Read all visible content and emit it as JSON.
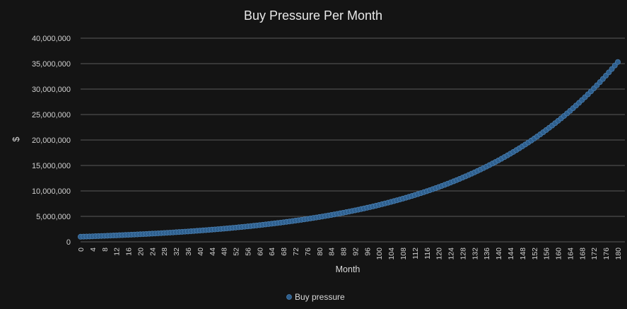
{
  "colors": {
    "background": "#141414",
    "gridline": "#5a5a5a",
    "series": "#2e5f8e",
    "series_stroke": "#4a7fb0"
  },
  "chart_data": {
    "type": "scatter",
    "title": "Buy Pressure Per Month",
    "xlabel": "Month",
    "ylabel": "$",
    "xlim": [
      0,
      180
    ],
    "ylim": [
      0,
      40000000
    ],
    "x_ticks": [
      0,
      4,
      8,
      12,
      16,
      20,
      24,
      28,
      32,
      36,
      40,
      44,
      48,
      52,
      56,
      60,
      64,
      68,
      72,
      76,
      80,
      84,
      88,
      92,
      96,
      100,
      104,
      108,
      112,
      116,
      120,
      124,
      128,
      132,
      136,
      140,
      144,
      148,
      152,
      156,
      160,
      164,
      168,
      172,
      176,
      180
    ],
    "y_ticks": [
      0,
      5000000,
      10000000,
      15000000,
      20000000,
      25000000,
      30000000,
      35000000,
      40000000
    ],
    "y_tick_labels": [
      "0",
      "5,000,000",
      "10,000,000",
      "15,000,000",
      "20,000,000",
      "25,000,000",
      "30,000,000",
      "35,000,000",
      "40,000,000"
    ],
    "grid": true,
    "legend_position": "bottom",
    "series": [
      {
        "name": "Buy pressure",
        "x": [
          0,
          1,
          2,
          3,
          4,
          5,
          6,
          7,
          8,
          9,
          10,
          11,
          12,
          13,
          14,
          15,
          16,
          17,
          18,
          19,
          20,
          21,
          22,
          23,
          24,
          25,
          26,
          27,
          28,
          29,
          30,
          31,
          32,
          33,
          34,
          35,
          36,
          37,
          38,
          39,
          40,
          41,
          42,
          43,
          44,
          45,
          46,
          47,
          48,
          49,
          50,
          51,
          52,
          53,
          54,
          55,
          56,
          57,
          58,
          59,
          60,
          61,
          62,
          63,
          64,
          65,
          66,
          67,
          68,
          69,
          70,
          71,
          72,
          73,
          74,
          75,
          76,
          77,
          78,
          79,
          80,
          81,
          82,
          83,
          84,
          85,
          86,
          87,
          88,
          89,
          90,
          91,
          92,
          93,
          94,
          95,
          96,
          97,
          98,
          99,
          100,
          101,
          102,
          103,
          104,
          105,
          106,
          107,
          108,
          109,
          110,
          111,
          112,
          113,
          114,
          115,
          116,
          117,
          118,
          119,
          120,
          121,
          122,
          123,
          124,
          125,
          126,
          127,
          128,
          129,
          130,
          131,
          132,
          133,
          134,
          135,
          136,
          137,
          138,
          139,
          140,
          141,
          142,
          143,
          144,
          145,
          146,
          147,
          148,
          149,
          150,
          151,
          152,
          153,
          154,
          155,
          156,
          157,
          158,
          159,
          160,
          161,
          162,
          163,
          164,
          165,
          166,
          167,
          168,
          169,
          170,
          171,
          172,
          173,
          174,
          175,
          176,
          177,
          178,
          179,
          180
        ],
        "y": [
          1000000,
          1020000,
          1040400,
          1061208,
          1082432,
          1104081,
          1126162,
          1148686,
          1171659,
          1195093,
          1218994,
          1243374,
          1268242,
          1293607,
          1319479,
          1345868,
          1372786,
          1400241,
          1428246,
          1456811,
          1485947,
          1515666,
          1545980,
          1576899,
          1608437,
          1640606,
          1673418,
          1706886,
          1741024,
          1775845,
          1811362,
          1847589,
          1884541,
          1922231,
          1960676,
          1999890,
          2039887,
          2080685,
          2122299,
          2164745,
          2208040,
          2252200,
          2297244,
          2343189,
          2390053,
          2437854,
          2486611,
          2536344,
          2587070,
          2638812,
          2691588,
          2745420,
          2800328,
          2856335,
          2913461,
          2971731,
          3031165,
          3091789,
          3153624,
          3216697,
          3281031,
          3346651,
          3413584,
          3481856,
          3551493,
          3622523,
          3694974,
          3768873,
          3844251,
          3921136,
          3999558,
          4079549,
          4161140,
          4244363,
          4329250,
          4415835,
          4504152,
          4594235,
          4686120,
          4779842,
          4875439,
          4972948,
          5072407,
          5173855,
          5277332,
          5382879,
          5490536,
          5600347,
          5712354,
          5826601,
          5943133,
          6061996,
          6183236,
          6306900,
          6433038,
          6561699,
          6692933,
          6826792,
          6963328,
          7102594,
          7244646,
          7389539,
          7537330,
          7688076,
          7841838,
          7998675,
          8158648,
          8321821,
          8488257,
          8658022,
          8831183,
          9007806,
          9187962,
          9371722,
          9559156,
          9750339,
          9945346,
          10144253,
          10347138,
          10554081,
          10765162,
          10980463,
          11200072,
          11424074,
          11652555,
          11885606,
          12123318,
          12365785,
          12613100,
          12865362,
          13122671,
          13385124,
          13652827,
          13925883,
          14204401,
          14488489,
          14778259,
          15073824,
          15375301,
          15682807,
          15996463,
          16316393,
          16642720,
          16975575,
          17315087,
          17661388,
          18014616,
          18374908,
          18742406,
          19117254,
          19499599,
          19889591,
          20287383,
          20693131,
          21106993,
          21529133,
          21959716,
          22398910,
          22846888,
          23303826,
          23769902,
          24245300,
          24730206,
          25224810,
          25729306,
          26243892,
          26768770,
          27304145,
          27850228,
          28407232,
          28975377,
          29554885,
          30145983,
          30748902,
          31363880,
          31991158,
          32630981,
          33283601,
          33949273,
          34628258,
          35320823
        ]
      }
    ]
  }
}
